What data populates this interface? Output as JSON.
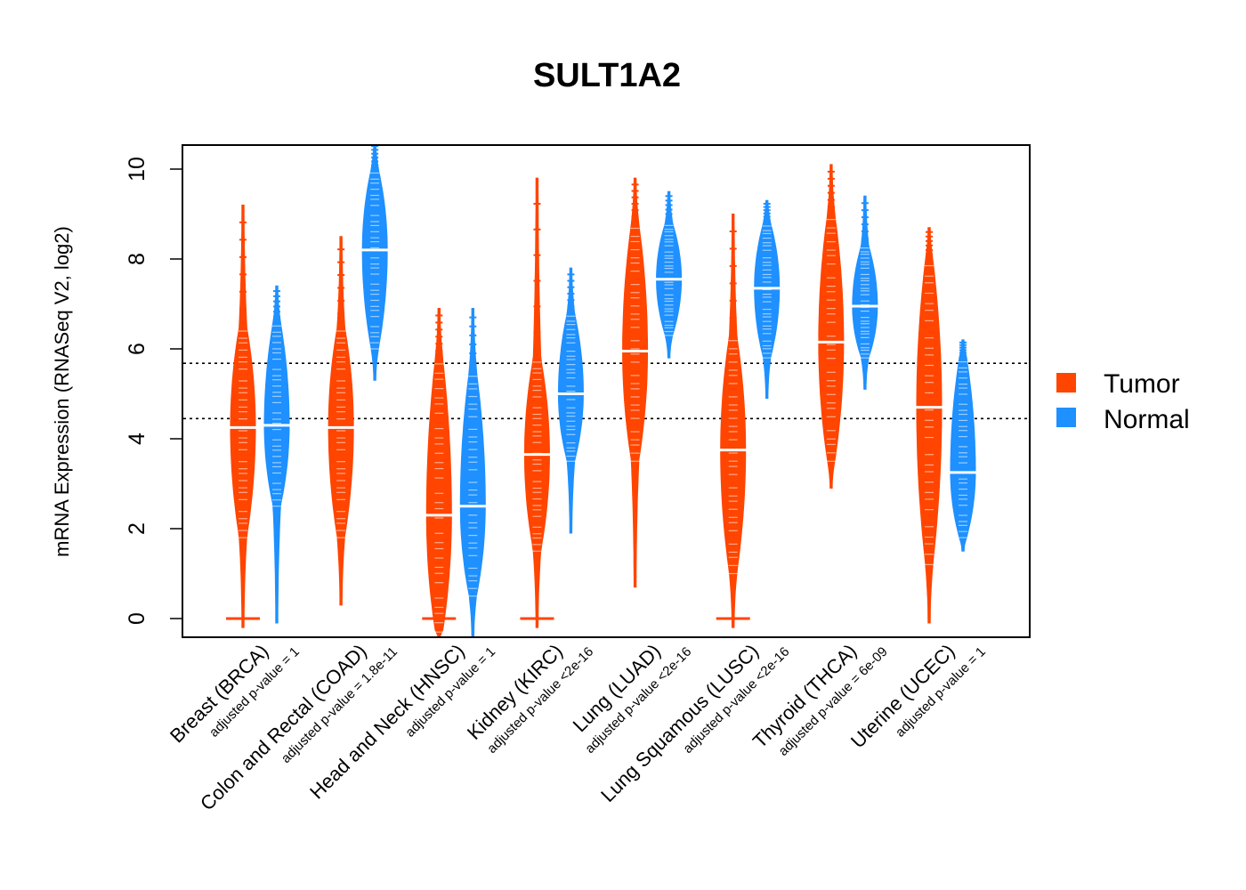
{
  "chart_data": {
    "type": "violin",
    "title": "SULT1A2",
    "xlabel": "",
    "ylabel": "mRNA Expression (RNASeq V2, log2)",
    "ylim": [
      -0.4,
      10.5
    ],
    "yticks": [
      0,
      2,
      4,
      6,
      8,
      10
    ],
    "reference_lines": [
      5.68,
      4.45
    ],
    "legend": {
      "position": "right",
      "entries": [
        "Tumor",
        "Normal"
      ]
    },
    "colors": {
      "Tumor": "#ff4500",
      "Normal": "#1e90ff"
    },
    "categories": [
      {
        "label": "Breast (BRCA)",
        "pvalue": "adjusted p-value = 1",
        "tumor": {
          "min": -0.2,
          "max": 9.2,
          "median": 4.25,
          "body": [
            1.8,
            6.5
          ],
          "zero_spike": true
        },
        "normal": {
          "min": -0.1,
          "max": 7.4,
          "median": 4.3,
          "body": [
            2.5,
            6.6
          ],
          "zero_spike": false
        }
      },
      {
        "label": "Colon and Rectal (COAD)",
        "pvalue": "adjusted p-value = 1.8e-11",
        "tumor": {
          "min": 0.3,
          "max": 8.5,
          "median": 4.25,
          "body": [
            1.8,
            6.5
          ],
          "zero_spike": false
        },
        "normal": {
          "min": 5.3,
          "max": 10.6,
          "median": 8.2,
          "body": [
            6.0,
            10.0
          ],
          "zero_spike": false
        }
      },
      {
        "label": "Head and Neck (HNSC)",
        "pvalue": "adjusted p-value = 1",
        "tumor": {
          "min": -0.4,
          "max": 6.9,
          "median": 2.3,
          "body": [
            -0.3,
            5.8
          ],
          "zero_spike": true
        },
        "normal": {
          "min": -0.4,
          "max": 6.9,
          "median": 2.5,
          "body": [
            0.5,
            5.5
          ],
          "zero_spike": false
        }
      },
      {
        "label": "Kidney (KIRC)",
        "pvalue": "adjusted p-value <2e-16",
        "tumor": {
          "min": -0.2,
          "max": 9.8,
          "median": 3.65,
          "body": [
            1.5,
            5.8
          ],
          "zero_spike": true
        },
        "normal": {
          "min": 1.9,
          "max": 7.8,
          "median": 5.0,
          "body": [
            3.5,
            6.8
          ],
          "zero_spike": false
        }
      },
      {
        "label": "Lung (LUAD)",
        "pvalue": "adjusted p-value <2e-16",
        "tumor": {
          "min": 0.7,
          "max": 9.8,
          "median": 5.95,
          "body": [
            3.5,
            8.8
          ],
          "zero_spike": false
        },
        "normal": {
          "min": 5.8,
          "max": 9.5,
          "median": 7.55,
          "body": [
            6.3,
            8.8
          ],
          "zero_spike": false
        }
      },
      {
        "label": "Lung Squamous (LUSC)",
        "pvalue": "adjusted p-value <2e-16",
        "tumor": {
          "min": -0.2,
          "max": 9.0,
          "median": 3.75,
          "body": [
            1.0,
            6.3
          ],
          "zero_spike": true
        },
        "normal": {
          "min": 4.9,
          "max": 9.3,
          "median": 7.35,
          "body": [
            5.8,
            8.8
          ],
          "zero_spike": false
        }
      },
      {
        "label": "Thyroid (THCA)",
        "pvalue": "adjusted p-value = 6e-09",
        "tumor": {
          "min": 2.9,
          "max": 10.1,
          "median": 6.15,
          "body": [
            3.5,
            9.0
          ],
          "zero_spike": false
        },
        "normal": {
          "min": 5.1,
          "max": 9.4,
          "median": 6.95,
          "body": [
            5.8,
            8.3
          ],
          "zero_spike": false
        }
      },
      {
        "label": "Uterine (UCEC)",
        "pvalue": "adjusted p-value = 1",
        "tumor": {
          "min": -0.1,
          "max": 8.7,
          "median": 4.7,
          "body": [
            1.2,
            8.0
          ],
          "zero_spike": false
        },
        "normal": {
          "min": 1.5,
          "max": 6.2,
          "median": 3.25,
          "body": [
            1.8,
            5.8
          ],
          "zero_spike": false
        }
      }
    ]
  }
}
